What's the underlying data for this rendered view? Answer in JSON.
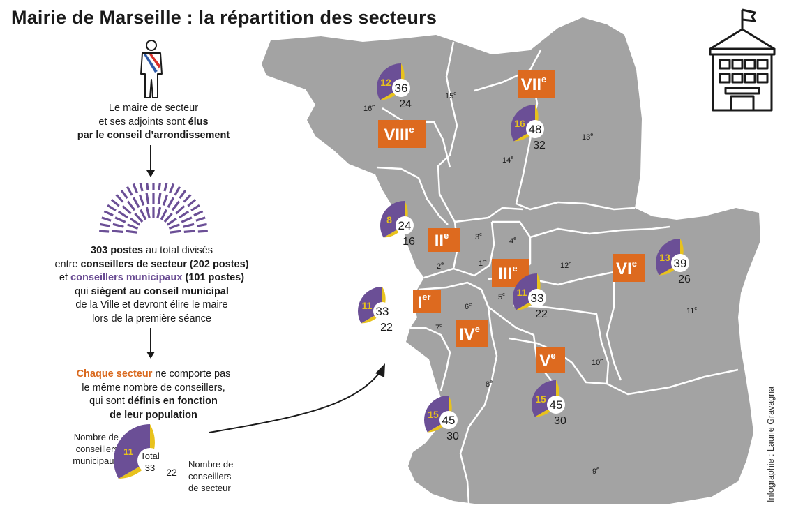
{
  "title": "Mairie de Marseille : la répartition des secteurs",
  "explainer": {
    "maire_line1": "Le maire de secteur",
    "maire_line2a": "et ses adjoints sont ",
    "maire_line2b": "élus",
    "maire_line3": "par le conseil d’arrondissement",
    "postes_a": "303 postes",
    "postes_b": " au total divisés",
    "entre_a": "entre ",
    "entre_b": "conseillers de secteur (202 postes)",
    "et_a": "et ",
    "et_b": "conseillers municipaux",
    "et_c": " (101 postes)",
    "qui_a": "qui ",
    "qui_b": "siègent au conseil municipal",
    "ville": "de la Ville et devront élire le maire",
    "seance": "lors de la première séance",
    "chaque_a": "Chaque secteur",
    "chaque_b": " ne comporte pas",
    "meme": "le même nombre de conseillers,",
    "qui_sont_a": "qui sont ",
    "qui_sont_b": "définis en fonction",
    "pop": "de leur population"
  },
  "legend": {
    "municipal_label_1": "Nombre de",
    "municipal_label_2": "conseillers",
    "municipal_label_3": "municipaux",
    "secteur_label_1": "Nombre de",
    "secteur_label_2": "conseillers",
    "secteur_label_3": "de secteur",
    "total_word": "Total",
    "total": "33",
    "municipal": "11",
    "secteur": "22"
  },
  "colors": {
    "map": "#a3a3a3",
    "border": "#ffffff",
    "municipal": "#6b4f96",
    "secteur": "#e8c21d",
    "sector_label_bg": "#dd6a1f",
    "title": "#1a1a1a"
  },
  "arrondissements": [
    "1er",
    "2e",
    "3e",
    "4e",
    "5e",
    "6e",
    "7e",
    "8e",
    "9e",
    "10e",
    "11e",
    "12e",
    "13e",
    "14e",
    "15e",
    "16e"
  ],
  "sectors": [
    {
      "roman": "I",
      "sup": "er",
      "total": "33",
      "municipal": "11",
      "secteur": "22"
    },
    {
      "roman": "II",
      "sup": "e",
      "total": "24",
      "municipal": "8",
      "secteur": "16"
    },
    {
      "roman": "III",
      "sup": "e",
      "total": "33",
      "municipal": "11",
      "secteur": "22"
    },
    {
      "roman": "IV",
      "sup": "e",
      "total": "45",
      "municipal": "15",
      "secteur": "30"
    },
    {
      "roman": "V",
      "sup": "e",
      "total": "45",
      "municipal": "15",
      "secteur": "30"
    },
    {
      "roman": "VI",
      "sup": "e",
      "total": "39",
      "municipal": "13",
      "secteur": "26"
    },
    {
      "roman": "VII",
      "sup": "e",
      "total": "48",
      "municipal": "16",
      "secteur": "32"
    },
    {
      "roman": "VIII",
      "sup": "e",
      "total": "36",
      "municipal": "12",
      "secteur": "24"
    }
  ],
  "credit": "Infographie : Laurie Gravagna",
  "icons": [
    "mayor-figure-icon",
    "assembly-hemicycle-icon",
    "town-hall-icon",
    "arrow-down-icon",
    "curved-arrow-icon"
  ]
}
